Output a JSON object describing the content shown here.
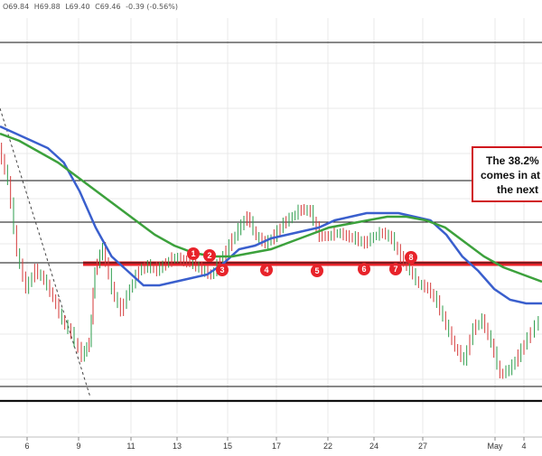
{
  "ohlc_readout": {
    "open": "O69.84",
    "high": "H69.88",
    "low": "L69.40",
    "close": "C69.46",
    "change": "-0.39 (-0.56%)"
  },
  "callout": {
    "lines": [
      "The 38.2%",
      "comes in at",
      "the next"
    ]
  },
  "colors": {
    "candle_up": "#2e9e4d",
    "candle_down": "#d43a3a",
    "ma_fast": "#3a5fcd",
    "ma_slow": "#3ca13c",
    "level_line": "#e8232a",
    "marker": "#e8232a",
    "grid": "#e8e8e8"
  },
  "chart_data": {
    "type": "line",
    "x_ticks": [
      "6",
      "9",
      "11",
      "13",
      "15",
      "17",
      "22",
      "24",
      "27",
      "May",
      "4"
    ],
    "horizontal_levels": [
      {
        "name": "fib-38.2",
        "kind": "thick-red",
        "value": 0.5
      },
      {
        "name": "level-a",
        "kind": "black",
        "value": 0.9
      },
      {
        "name": "level-b",
        "kind": "black",
        "value": 0.64
      },
      {
        "name": "level-c",
        "kind": "black",
        "value": 0.56
      },
      {
        "name": "level-d",
        "kind": "black",
        "value": 0.5
      },
      {
        "name": "level-e",
        "kind": "black",
        "value": 0.1
      },
      {
        "name": "level-f",
        "kind": "thick-black",
        "value": 0.06
      }
    ],
    "markers": [
      "1",
      "2",
      "3",
      "4",
      "5",
      "6",
      "7",
      "8"
    ],
    "series": [
      {
        "values": [
          0.8,
          0.78,
          0.76,
          0.74,
          0.7,
          0.62,
          0.52,
          0.44,
          0.4,
          0.36,
          0.36,
          0.37,
          0.38,
          0.39,
          0.42,
          0.46,
          0.47,
          0.49,
          0.5,
          0.51,
          0.52,
          0.54,
          0.55,
          0.56,
          0.56,
          0.56,
          0.55,
          0.54,
          0.5,
          0.44,
          0.4,
          0.35,
          0.32,
          0.31,
          0.31
        ]
      },
      {
        "values": [
          0.78,
          0.76,
          0.73,
          0.7,
          0.66,
          0.62,
          0.58,
          0.54,
          0.5,
          0.47,
          0.45,
          0.44,
          0.44,
          0.45,
          0.46,
          0.48,
          0.5,
          0.52,
          0.53,
          0.54,
          0.55,
          0.55,
          0.54,
          0.52,
          0.48,
          0.44,
          0.41,
          0.39,
          0.37
        ]
      }
    ]
  }
}
